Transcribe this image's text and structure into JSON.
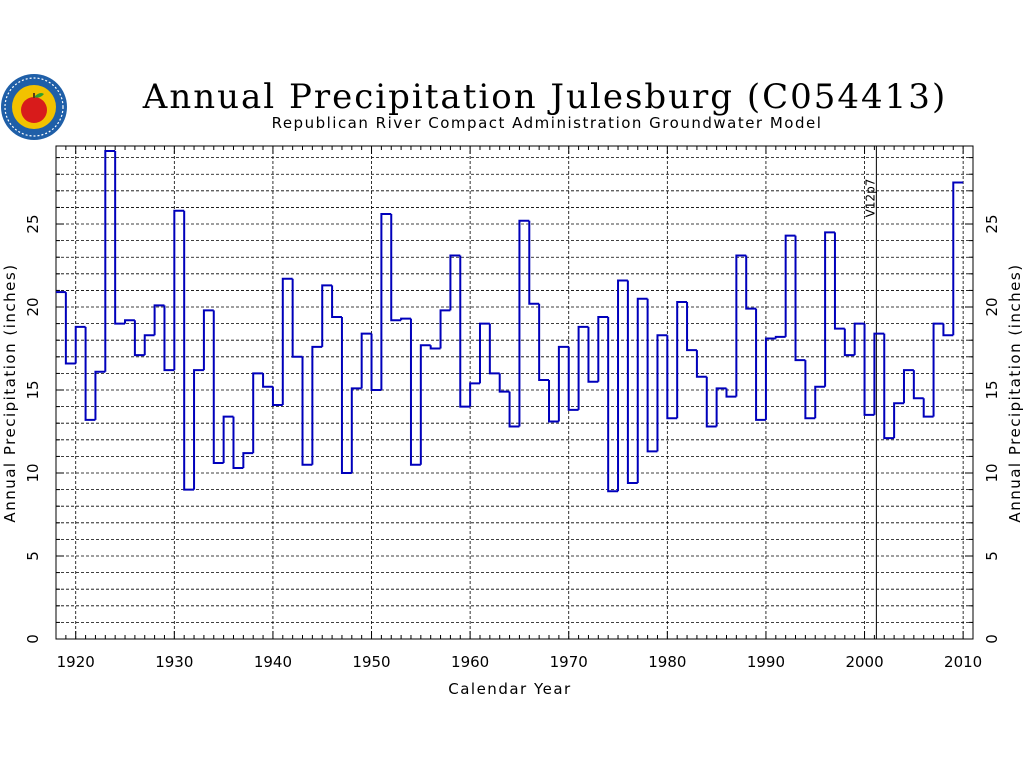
{
  "page": {
    "title": "Annual Precipitation Julesburg (C054413)",
    "subtitle": "Republican River Compact Administration Groundwater Model",
    "logo_icon": "apple-seal-logo",
    "colors": {
      "series": "#0000bb",
      "axes": "#000000",
      "grid": "#000000",
      "logo_ring": "#1f5fa8",
      "logo_fill": "#f2c200",
      "apple": "#d81b1b",
      "leaf": "#2e9e2e"
    }
  },
  "chart_data": {
    "type": "line",
    "step": true,
    "xlabel": "Calendar Year",
    "ylabel": "Annual Precipitation (inches)",
    "ylabel_right": "Annual Precipitation (inches)",
    "xlim": [
      1918,
      2011
    ],
    "ylim": [
      0,
      29.7
    ],
    "xticks": [
      1920,
      1930,
      1940,
      1950,
      1960,
      1970,
      1980,
      1990,
      2000,
      2010
    ],
    "yticks": [
      0,
      5,
      10,
      15,
      20,
      25
    ],
    "grid": true,
    "grid_minor_y": 1,
    "vertical_marker": {
      "x": 2001.2,
      "label": "V12p7"
    },
    "series": [
      {
        "x": [
          1918,
          1919,
          1920,
          1921,
          1922,
          1923,
          1924,
          1925,
          1926,
          1927,
          1928,
          1929,
          1930,
          1931,
          1932,
          1933,
          1934,
          1935,
          1936,
          1937,
          1938,
          1939,
          1940,
          1941,
          1942,
          1943,
          1944,
          1945,
          1946,
          1947,
          1948,
          1949,
          1950,
          1951,
          1952,
          1953,
          1954,
          1955,
          1956,
          1957,
          1958,
          1959,
          1960,
          1961,
          1962,
          1963,
          1964,
          1965,
          1966,
          1967,
          1968,
          1969,
          1970,
          1971,
          1972,
          1973,
          1974,
          1975,
          1976,
          1977,
          1978,
          1979,
          1980,
          1981,
          1982,
          1983,
          1984,
          1985,
          1986,
          1987,
          1988,
          1989,
          1990,
          1991,
          1992,
          1993,
          1994,
          1995,
          1996,
          1997,
          1998,
          1999,
          2000,
          2001,
          2002,
          2003,
          2004,
          2005,
          2006,
          2007,
          2008,
          2009
        ],
        "values": [
          20.9,
          16.6,
          18.8,
          13.2,
          16.1,
          29.4,
          19.0,
          19.2,
          17.1,
          18.3,
          20.1,
          16.2,
          25.8,
          9.0,
          16.2,
          19.8,
          10.6,
          13.4,
          10.3,
          11.2,
          16.0,
          15.2,
          14.1,
          21.7,
          17.0,
          10.5,
          17.6,
          21.3,
          19.4,
          10.0,
          15.1,
          18.4,
          15.0,
          25.6,
          19.2,
          19.3,
          10.5,
          17.7,
          17.5,
          19.8,
          23.1,
          14.0,
          15.4,
          19.0,
          16.0,
          14.9,
          12.8,
          25.2,
          20.2,
          15.6,
          13.1,
          17.6,
          13.8,
          18.8,
          15.5,
          19.4,
          8.9,
          21.6,
          9.4,
          20.5,
          11.3,
          18.3,
          13.3,
          20.3,
          17.4,
          15.8,
          12.8,
          15.1,
          14.6,
          23.1,
          19.9,
          13.2,
          18.1,
          18.2,
          24.3,
          16.8,
          13.3,
          15.2,
          24.5,
          18.7,
          17.1,
          19.0,
          13.5,
          18.4,
          12.1,
          14.2,
          16.2,
          14.5,
          13.4,
          19.0,
          18.3,
          27.5
        ]
      }
    ]
  }
}
